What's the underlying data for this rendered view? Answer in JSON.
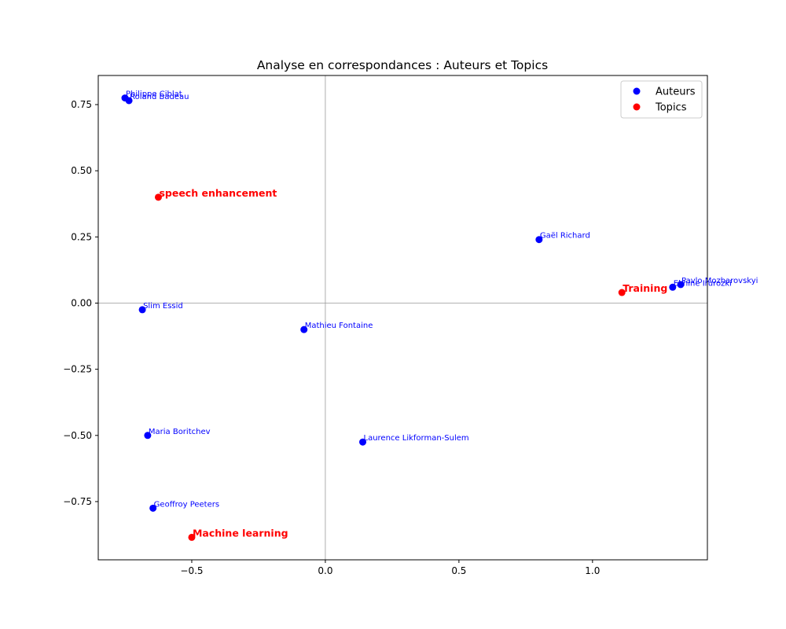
{
  "chart_data": {
    "type": "scatter",
    "title": "Analyse en correspondances : Auteurs et Topics",
    "xlabel": "",
    "ylabel": "",
    "xlim": [
      -0.85,
      1.43
    ],
    "ylim": [
      -0.97,
      0.86
    ],
    "xticks": [
      -0.5,
      0.0,
      0.5,
      1.0
    ],
    "xtick_labels": [
      "−0.5",
      "0.0",
      "0.5",
      "1.0"
    ],
    "yticks": [
      -0.75,
      -0.5,
      -0.25,
      0.0,
      0.25,
      0.5,
      0.75
    ],
    "ytick_labels": [
      "−0.75",
      "−0.50",
      "−0.25",
      "0.00",
      "0.25",
      "0.50",
      "0.75"
    ],
    "reference_lines": {
      "x0": true,
      "y0": true
    },
    "legend_position": "top-right",
    "colors": {
      "Auteurs": "#0000ff",
      "Topics": "#ff0000"
    },
    "series": [
      {
        "name": "Auteurs",
        "points": [
          {
            "label": "Philippe Ciblat",
            "x": -0.75,
            "y": 0.775
          },
          {
            "label": "Roland Badeau",
            "x": -0.735,
            "y": 0.765
          },
          {
            "label": "Gaël Richard",
            "x": 0.8,
            "y": 0.24
          },
          {
            "label": "Pavlo Mozharovskyi",
            "x": 1.33,
            "y": 0.07
          },
          {
            "label": "Ekhine Irurozki",
            "x": 1.3,
            "y": 0.06
          },
          {
            "label": "Slim Essid",
            "x": -0.685,
            "y": -0.025
          },
          {
            "label": "Mathieu Fontaine",
            "x": -0.08,
            "y": -0.1
          },
          {
            "label": "Maria Boritchev",
            "x": -0.665,
            "y": -0.5
          },
          {
            "label": "Laurence Likforman-Sulem",
            "x": 0.14,
            "y": -0.525
          },
          {
            "label": "Geoffroy Peeters",
            "x": -0.645,
            "y": -0.775
          }
        ]
      },
      {
        "name": "Topics",
        "points": [
          {
            "label": "speech enhancement",
            "x": -0.625,
            "y": 0.4
          },
          {
            "label": "Training",
            "x": 1.11,
            "y": 0.04
          },
          {
            "label": "Machine learning",
            "x": -0.5,
            "y": -0.885
          }
        ]
      }
    ]
  }
}
